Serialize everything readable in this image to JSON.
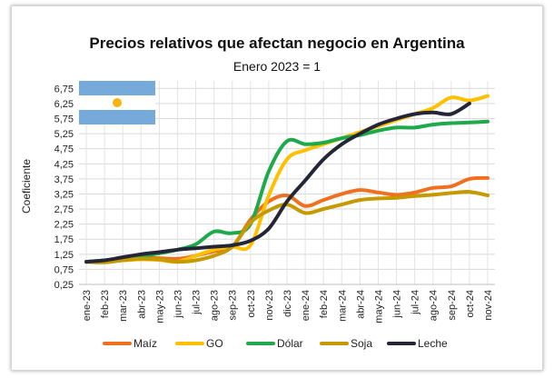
{
  "chart_data": {
    "type": "line",
    "title": "Precios relativos que afectan negocio en Argentina",
    "subtitle": "Enero 2023 = 1",
    "xlabel": "",
    "ylabel": "Coeficiente",
    "ylim": [
      0.25,
      7.0
    ],
    "yticks": [
      "0,25",
      "0,75",
      "1,25",
      "1,75",
      "2,25",
      "2,75",
      "3,25",
      "3,75",
      "4,25",
      "4,75",
      "5,25",
      "5,75",
      "6,25",
      "6,75"
    ],
    "grid": true,
    "legend_position": "bottom",
    "categories": [
      "ene-23",
      "feb-23",
      "mar-23",
      "abr-23",
      "may-23",
      "jun-23",
      "jul-23",
      "ago-23",
      "sep-23",
      "oct-23",
      "nov-23",
      "dic-23",
      "ene-24",
      "feb-24",
      "mar-24",
      "abr-24",
      "may-24",
      "jun-24",
      "jul-24",
      "ago-24",
      "sep-24",
      "oct-24",
      "nov-24"
    ],
    "series": [
      {
        "name": "Maíz",
        "color": "#F07020",
        "values": [
          1.0,
          1.04,
          1.08,
          1.13,
          1.12,
          1.1,
          1.2,
          1.35,
          1.5,
          2.4,
          3.0,
          3.2,
          2.85,
          3.05,
          3.25,
          3.38,
          3.3,
          3.22,
          3.3,
          3.45,
          3.5,
          3.75,
          3.78
        ]
      },
      {
        "name": "GO",
        "color": "#FFC000",
        "values": [
          1.0,
          1.03,
          1.05,
          1.08,
          1.06,
          1.0,
          1.2,
          1.4,
          1.5,
          1.55,
          3.2,
          4.4,
          4.7,
          4.9,
          5.1,
          5.3,
          5.5,
          5.7,
          5.9,
          6.1,
          6.45,
          6.35,
          6.5
        ]
      },
      {
        "name": "Dólar",
        "color": "#1EAA4B",
        "values": [
          1.0,
          1.05,
          1.1,
          1.18,
          1.28,
          1.4,
          1.58,
          2.0,
          1.95,
          2.25,
          4.0,
          5.0,
          4.9,
          4.95,
          5.1,
          5.2,
          5.35,
          5.45,
          5.45,
          5.55,
          5.6,
          5.62,
          5.65
        ]
      },
      {
        "name": "Soja",
        "color": "#C49A00",
        "values": [
          1.0,
          0.98,
          1.05,
          1.1,
          1.08,
          1.0,
          1.05,
          1.2,
          1.5,
          2.3,
          2.7,
          2.9,
          2.62,
          2.75,
          2.9,
          3.05,
          3.1,
          3.12,
          3.18,
          3.22,
          3.28,
          3.32,
          3.2
        ]
      },
      {
        "name": "Leche",
        "color": "#242638",
        "values": [
          1.0,
          1.05,
          1.15,
          1.25,
          1.32,
          1.4,
          1.45,
          1.5,
          1.55,
          1.7,
          2.1,
          3.0,
          3.7,
          4.4,
          4.9,
          5.25,
          5.55,
          5.75,
          5.9,
          5.95,
          5.9,
          6.25,
          null
        ]
      }
    ]
  },
  "flag": {
    "name": "argentina-flag-icon",
    "stripe_color": "#75AADB",
    "center_color": "#FFFFFF",
    "sun_color": "#F6B40E"
  }
}
